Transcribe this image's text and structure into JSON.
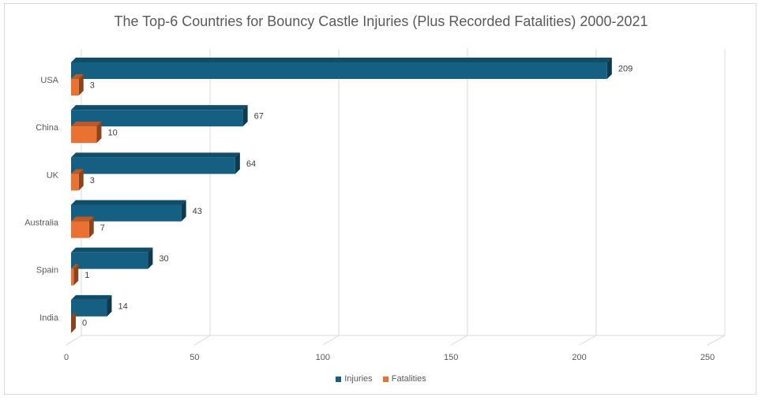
{
  "chart_data": {
    "type": "bar",
    "orientation": "horizontal",
    "title": "The Top-6 Countries for Bouncy Castle Injuries (Plus Recorded Fatalities) 2000-2021",
    "categories": [
      "USA",
      "China",
      "UK",
      "Australia",
      "Spain",
      "India"
    ],
    "series": [
      {
        "name": "Injuries",
        "values": [
          209,
          67,
          64,
          43,
          30,
          14
        ],
        "color": "#156082"
      },
      {
        "name": "Fatalities",
        "values": [
          3,
          10,
          3,
          7,
          1,
          0
        ],
        "color": "#e97132"
      }
    ],
    "xlim": [
      0,
      250
    ],
    "xticks": [
      0,
      50,
      100,
      150,
      200,
      250
    ],
    "xlabel": "",
    "ylabel": "",
    "grid": "vertical",
    "legend": "bottom",
    "style": "3d"
  }
}
